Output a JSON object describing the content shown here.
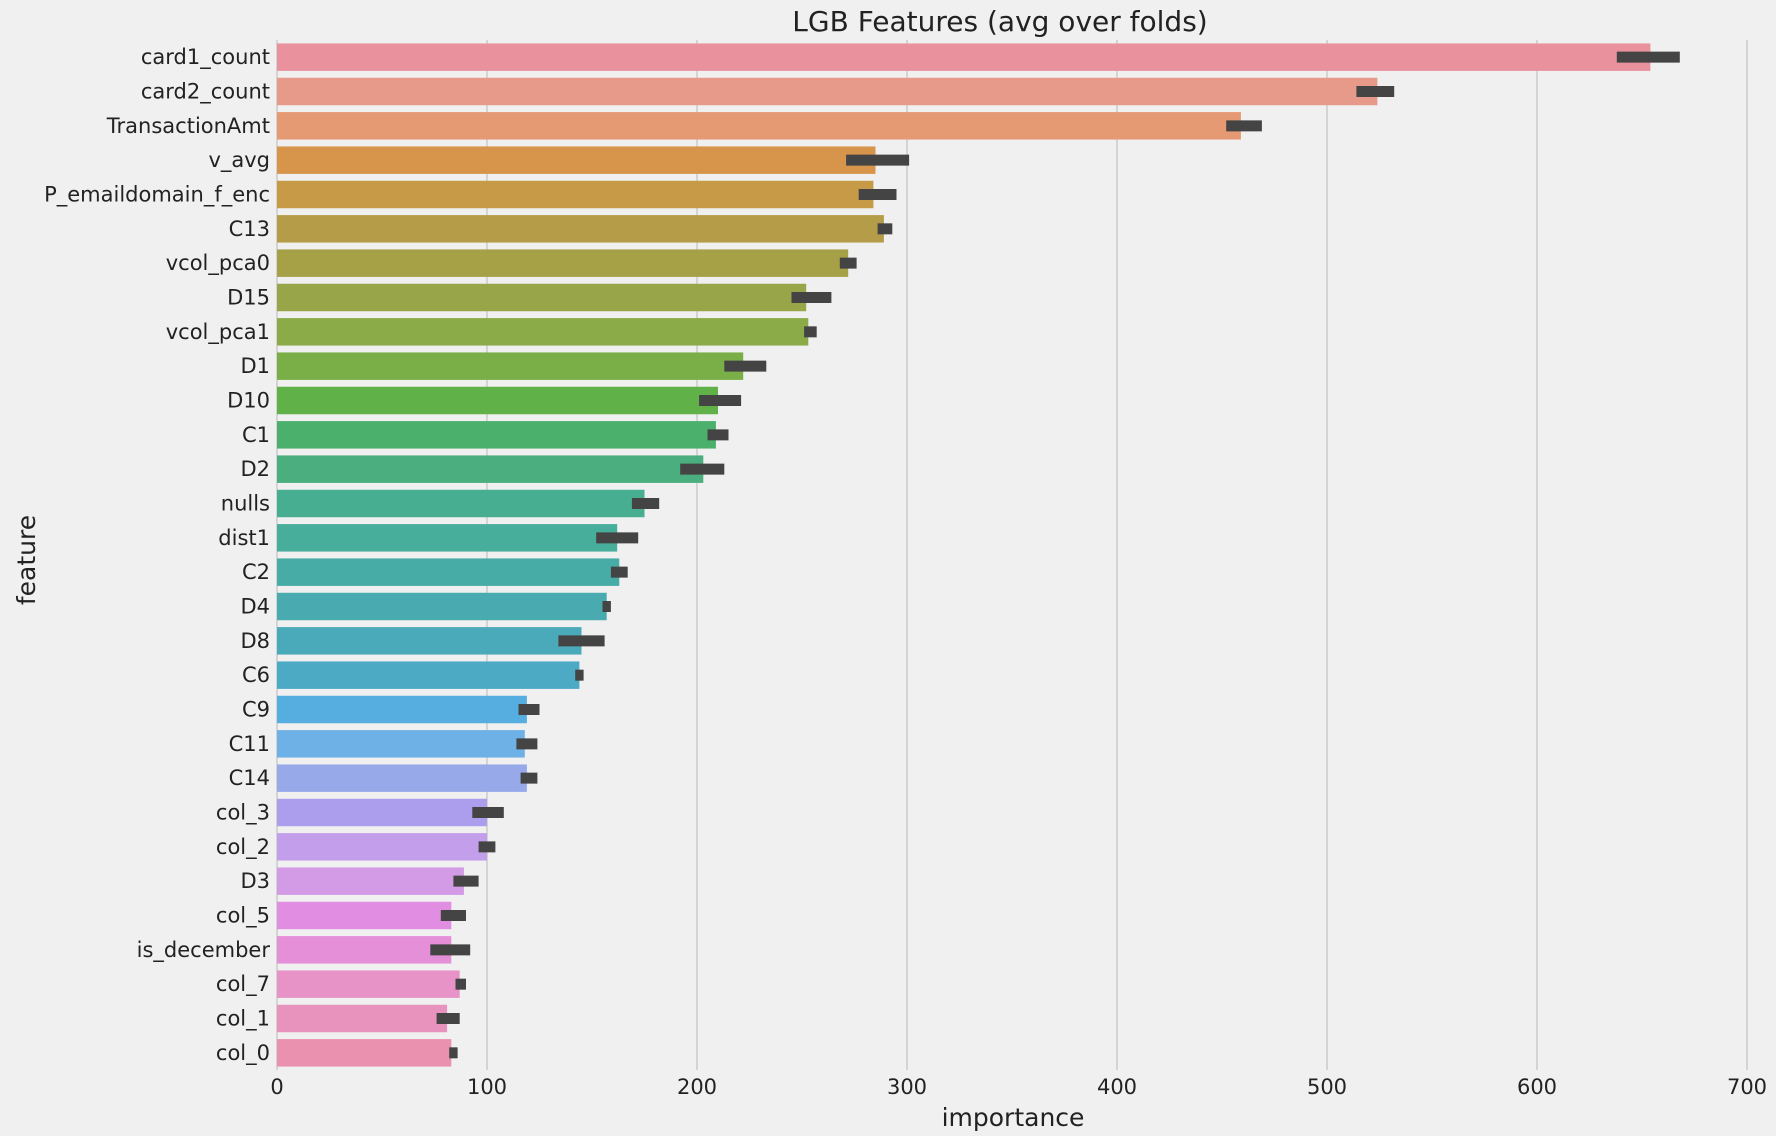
{
  "chart_data": {
    "type": "bar",
    "orientation": "horizontal",
    "title": "LGB Features (avg over folds)",
    "xlabel": "importance",
    "ylabel": "feature",
    "xlim": [
      0,
      700
    ],
    "xticks": [
      0,
      100,
      200,
      300,
      400,
      500,
      600,
      700
    ],
    "grid": "x",
    "error_bars": true,
    "categories": [
      "card1_count",
      "card2_count",
      "TransactionAmt",
      "v_avg",
      "P_emaildomain_f_enc",
      "C13",
      "vcol_pca0",
      "D15",
      "vcol_pca1",
      "D1",
      "D10",
      "C1",
      "D2",
      "nulls",
      "dist1",
      "C2",
      "D4",
      "D8",
      "C6",
      "C9",
      "C11",
      "C14",
      "col_3",
      "col_2",
      "D3",
      "col_5",
      "is_december",
      "col_7",
      "col_1",
      "col_0"
    ],
    "values": [
      654,
      524,
      459,
      285,
      284,
      289,
      272,
      252,
      253,
      222,
      210,
      209,
      203,
      175,
      162,
      163,
      157,
      145,
      144,
      119,
      118,
      119,
      100,
      100,
      89,
      83,
      83,
      87,
      81,
      83
    ],
    "error_low": [
      638,
      514,
      452,
      271,
      277,
      286,
      268,
      245,
      251,
      213,
      201,
      205,
      192,
      169,
      152,
      159,
      155,
      134,
      142,
      115,
      114,
      116,
      93,
      96,
      84,
      78,
      73,
      85,
      76,
      82
    ],
    "error_high": [
      668,
      532,
      469,
      301,
      295,
      293,
      276,
      264,
      257,
      233,
      221,
      215,
      213,
      182,
      172,
      167,
      159,
      156,
      146,
      125,
      124,
      124,
      108,
      104,
      96,
      90,
      92,
      90,
      87,
      86
    ],
    "colors": [
      "#e9919c",
      "#e89a8a",
      "#e59a73",
      "#d6954a",
      "#c79a48",
      "#b49c48",
      "#a6a047",
      "#98a548",
      "#8aab48",
      "#7aaf48",
      "#5fb148",
      "#4bb06c",
      "#4aae7e",
      "#48ae92",
      "#48ae9c",
      "#48aca6",
      "#49aab0",
      "#4baab9",
      "#4daac5",
      "#56aee0",
      "#6eb1e6",
      "#98a9ea",
      "#ac9eec",
      "#c39eea",
      "#d39ae6",
      "#e08de2",
      "#e58fd8",
      "#e793c8",
      "#e892be",
      "#e991ae"
    ],
    "error_bar_color": "#444444",
    "background_color": "#f0f0f0",
    "grid_color": "#cbcbcb"
  }
}
